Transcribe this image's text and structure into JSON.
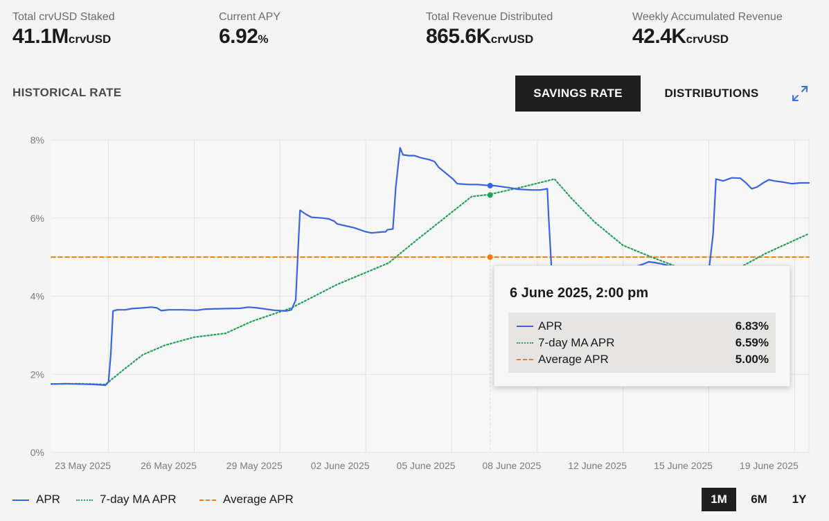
{
  "stats": [
    {
      "label": "Total crvUSD Staked",
      "value": "41.1M",
      "unit": "crvUSD"
    },
    {
      "label": "Current APY",
      "value": "6.92",
      "unit": "%"
    },
    {
      "label": "Total Revenue Distributed",
      "value": "865.6K",
      "unit": "crvUSD"
    },
    {
      "label": "Weekly Accumulated Revenue",
      "value": "42.4K",
      "unit": "crvUSD"
    }
  ],
  "section_title": "HISTORICAL RATE",
  "tabs": {
    "savings_rate": "SAVINGS RATE",
    "distributions": "DISTRIBUTIONS"
  },
  "active_tab": "SAVINGS RATE",
  "expand_icon": "expand-arrows-icon",
  "tooltip": {
    "title": "6 June 2025, 2:00 pm",
    "rows": [
      {
        "name": "APR",
        "value": "6.83%"
      },
      {
        "name": "7-day MA APR",
        "value": "6.59%"
      },
      {
        "name": "Average APR",
        "value": "5.00%"
      }
    ]
  },
  "legend": [
    {
      "name": "APR",
      "color": "#3b63e0",
      "style": "solid"
    },
    {
      "name": "7-day MA APR",
      "color": "#22a05a",
      "style": "dotted"
    },
    {
      "name": "Average APR",
      "color": "#f07c10",
      "style": "dashed"
    }
  ],
  "range_buttons": [
    "1M",
    "6M",
    "1Y"
  ],
  "active_range": "1M",
  "chart_data": {
    "type": "line",
    "xlabel": "",
    "ylabel": "",
    "ylim": [
      0,
      8
    ],
    "y_ticks": [
      "0%",
      "2%",
      "4%",
      "6%",
      "8%"
    ],
    "x_ticks": [
      "23 May 2025",
      "26 May 2025",
      "29 May 2025",
      "02 June 2025",
      "05 June 2025",
      "08 June 2025",
      "12 June 2025",
      "15 June 2025",
      "19 June 2025"
    ],
    "x_tick_days": [
      2,
      5,
      8,
      11,
      14,
      17,
      20,
      23,
      26
    ],
    "x_start": "20 May 2025",
    "grid": true,
    "series": [
      {
        "name": "APR",
        "color": "#3b63e0",
        "points": [
          [
            0.0,
            1.75
          ],
          [
            0.5,
            1.76
          ],
          [
            1.0,
            1.75
          ],
          [
            1.5,
            1.74
          ],
          [
            1.9,
            1.72
          ],
          [
            2.0,
            1.8
          ],
          [
            2.08,
            2.5
          ],
          [
            2.16,
            3.62
          ],
          [
            2.3,
            3.65
          ],
          [
            2.6,
            3.65
          ],
          [
            2.8,
            3.68
          ],
          [
            3.2,
            3.7
          ],
          [
            3.5,
            3.72
          ],
          [
            3.7,
            3.7
          ],
          [
            3.85,
            3.63
          ],
          [
            4.1,
            3.65
          ],
          [
            4.6,
            3.65
          ],
          [
            5.1,
            3.64
          ],
          [
            5.4,
            3.67
          ],
          [
            6.0,
            3.68
          ],
          [
            6.6,
            3.69
          ],
          [
            6.9,
            3.72
          ],
          [
            7.2,
            3.7
          ],
          [
            7.6,
            3.66
          ],
          [
            7.8,
            3.64
          ],
          [
            8.2,
            3.62
          ],
          [
            8.4,
            3.65
          ],
          [
            8.55,
            3.9
          ],
          [
            8.62,
            5.0
          ],
          [
            8.7,
            6.2
          ],
          [
            8.9,
            6.1
          ],
          [
            9.1,
            6.02
          ],
          [
            9.5,
            6.0
          ],
          [
            9.7,
            5.98
          ],
          [
            9.9,
            5.92
          ],
          [
            10.0,
            5.85
          ],
          [
            10.3,
            5.8
          ],
          [
            10.6,
            5.75
          ],
          [
            10.8,
            5.7
          ],
          [
            11.0,
            5.65
          ],
          [
            11.2,
            5.62
          ],
          [
            11.5,
            5.64
          ],
          [
            11.7,
            5.65
          ],
          [
            11.75,
            5.7
          ],
          [
            11.95,
            5.72
          ],
          [
            12.05,
            6.8
          ],
          [
            12.2,
            7.8
          ],
          [
            12.3,
            7.62
          ],
          [
            12.5,
            7.6
          ],
          [
            12.7,
            7.6
          ],
          [
            12.9,
            7.55
          ],
          [
            13.2,
            7.5
          ],
          [
            13.4,
            7.45
          ],
          [
            13.55,
            7.3
          ],
          [
            13.8,
            7.15
          ],
          [
            14.05,
            7.0
          ],
          [
            14.2,
            6.88
          ],
          [
            14.6,
            6.86
          ],
          [
            14.9,
            6.86
          ],
          [
            15.2,
            6.84
          ],
          [
            15.5,
            6.83
          ],
          [
            15.8,
            6.8
          ],
          [
            16.0,
            6.78
          ],
          [
            16.3,
            6.74
          ],
          [
            16.8,
            6.72
          ],
          [
            17.1,
            6.72
          ],
          [
            17.35,
            6.75
          ],
          [
            17.4,
            6.0
          ],
          [
            17.5,
            4.65
          ],
          [
            17.8,
            4.62
          ],
          [
            18.6,
            4.6
          ],
          [
            19.0,
            4.62
          ],
          [
            19.3,
            4.62
          ],
          [
            19.6,
            4.62
          ],
          [
            20.1,
            4.7
          ],
          [
            20.4,
            4.75
          ],
          [
            20.7,
            4.82
          ],
          [
            20.9,
            4.88
          ],
          [
            21.1,
            4.86
          ],
          [
            21.4,
            4.82
          ],
          [
            21.6,
            4.78
          ],
          [
            22.0,
            4.76
          ],
          [
            22.3,
            4.75
          ],
          [
            22.6,
            4.72
          ],
          [
            22.8,
            4.68
          ],
          [
            23.0,
            4.65
          ],
          [
            23.15,
            5.6
          ],
          [
            23.25,
            7.0
          ],
          [
            23.5,
            6.95
          ],
          [
            23.8,
            7.03
          ],
          [
            24.1,
            7.02
          ],
          [
            24.3,
            6.9
          ],
          [
            24.5,
            6.75
          ],
          [
            24.7,
            6.8
          ],
          [
            24.9,
            6.9
          ],
          [
            25.1,
            6.98
          ],
          [
            25.3,
            6.95
          ],
          [
            25.6,
            6.92
          ],
          [
            25.9,
            6.88
          ],
          [
            26.2,
            6.9
          ],
          [
            26.5,
            6.9
          ]
        ]
      },
      {
        "name": "7-day MA APR",
        "color": "#22a05a",
        "points": [
          [
            0.0,
            1.75
          ],
          [
            1.0,
            1.76
          ],
          [
            1.9,
            1.74
          ],
          [
            2.5,
            2.1
          ],
          [
            3.2,
            2.5
          ],
          [
            4.0,
            2.75
          ],
          [
            5.0,
            2.95
          ],
          [
            6.1,
            3.05
          ],
          [
            7.0,
            3.35
          ],
          [
            8.4,
            3.7
          ],
          [
            10.0,
            4.3
          ],
          [
            11.8,
            4.85
          ],
          [
            12.8,
            5.45
          ],
          [
            14.7,
            6.55
          ],
          [
            15.3,
            6.6
          ],
          [
            16.5,
            6.8
          ],
          [
            17.6,
            7.0
          ],
          [
            18.2,
            6.5
          ],
          [
            19.0,
            5.9
          ],
          [
            20.0,
            5.3
          ],
          [
            21.0,
            5.0
          ],
          [
            22.0,
            4.72
          ],
          [
            23.0,
            4.6
          ],
          [
            24.0,
            4.7
          ],
          [
            25.0,
            5.1
          ],
          [
            26.5,
            5.6
          ]
        ]
      },
      {
        "name": "Average APR",
        "color": "#f07c10",
        "points": [
          [
            0.0,
            5.0
          ],
          [
            26.5,
            5.0
          ]
        ]
      }
    ],
    "hover": {
      "x_day": 15.35,
      "values": {
        "APR": 6.83,
        "7-day MA APR": 6.59,
        "Average APR": 5.0
      }
    }
  }
}
